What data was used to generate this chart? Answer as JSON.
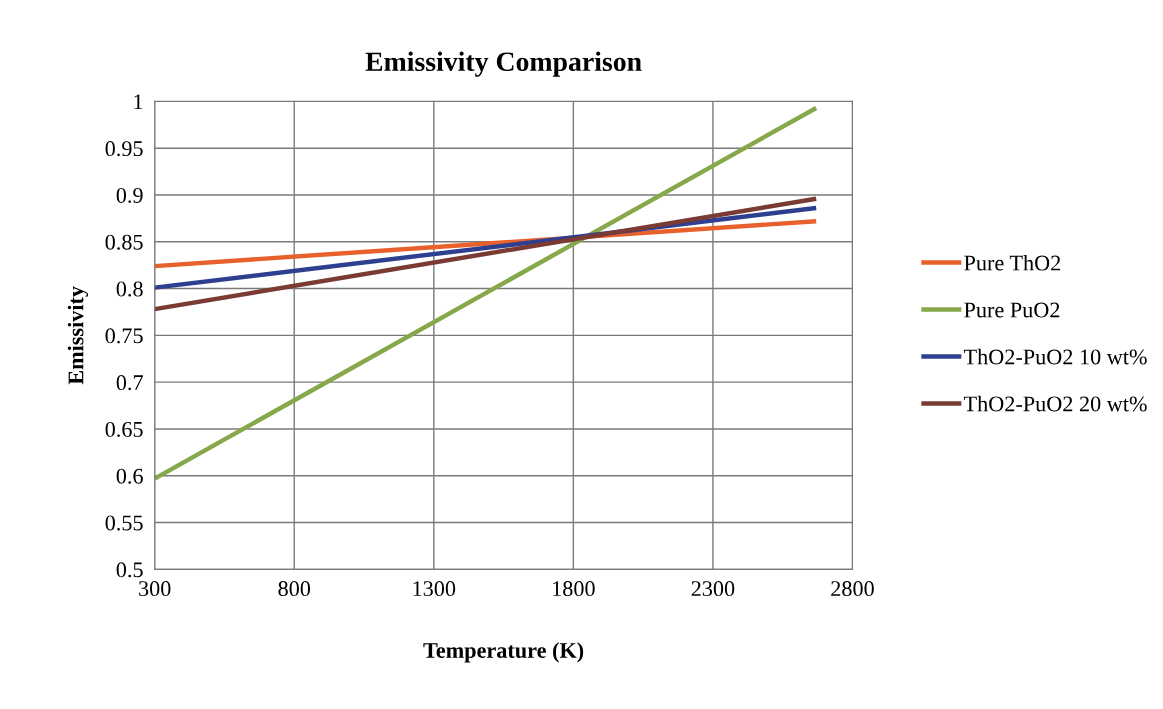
{
  "chart_data": {
    "type": "line",
    "title": "Emissivity Comparison",
    "xlabel": "Temperature (K)",
    "ylabel": "Emissivity",
    "xlim": [
      300,
      2800
    ],
    "xticks": [
      300,
      800,
      1300,
      1800,
      2300,
      2800
    ],
    "ylim": [
      0.5,
      1
    ],
    "yticks": [
      0.5,
      0.55,
      0.6,
      0.65,
      0.7,
      0.75,
      0.8,
      0.85,
      0.9,
      0.95,
      1
    ],
    "grid": true,
    "legend": "right",
    "marker": "none",
    "line_style": "solid",
    "x": [
      300,
      2670
    ],
    "series": [
      {
        "name": "Pure ThO2",
        "color": "#e8602c",
        "values": [
          0.824,
          0.872
        ]
      },
      {
        "name": "Pure PuO2",
        "color": "#86a84a",
        "values": [
          0.597,
          0.993
        ]
      },
      {
        "name": "ThO2-PuO2 10 wt%",
        "color": "#2e3f8f",
        "values": [
          0.801,
          0.886
        ]
      },
      {
        "name": "ThO2-PuO2 20 wt%",
        "color": "#7a3b34",
        "values": [
          0.778,
          0.896
        ]
      }
    ]
  }
}
